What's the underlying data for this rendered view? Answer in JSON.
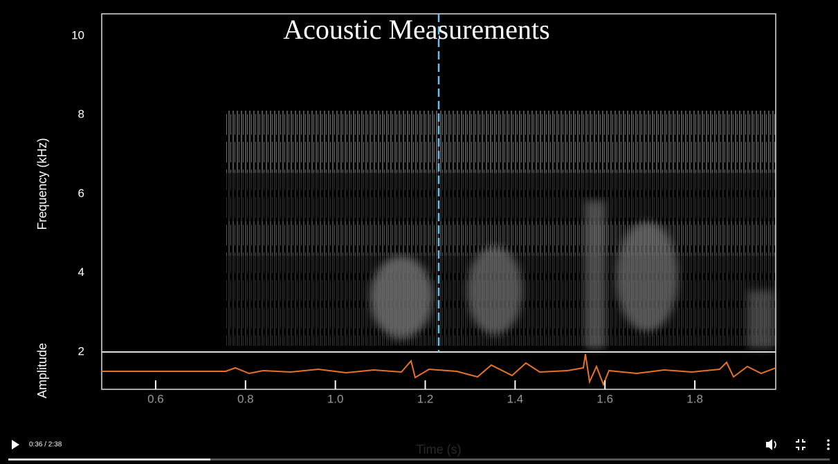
{
  "spectrogram": {
    "title": "Acoustic Measurements",
    "y_label": "Frequency (kHz)",
    "amplitude_label": "Amplitude",
    "x_label": "Time (s)",
    "ylim": [
      2,
      10.56
    ],
    "yticks": [
      10,
      8,
      6,
      4,
      2
    ],
    "xlim": [
      0.48,
      1.98
    ],
    "xticks": [
      0.6,
      0.8,
      {
        "value": 1.0,
        "label": "1.0"
      },
      1.2,
      1.4,
      1.6,
      1.8
    ],
    "cursor_time": 1.23
  },
  "player": {
    "time": "0:36 / 2:38"
  }
}
